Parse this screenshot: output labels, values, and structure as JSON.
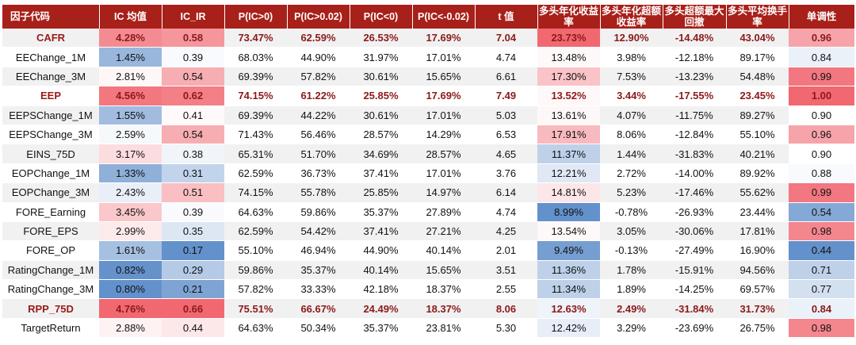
{
  "headers": [
    "因子代码",
    "IC 均值",
    "IC_IR",
    "P(IC>0)",
    "P(IC>0.02)",
    "P(IC<0)",
    "P(IC<-0.02)",
    "t 值",
    "多头年化收益率",
    "多头年化超额收益率",
    "多头超额最大回撤",
    "多头平均换手率",
    "单调性"
  ],
  "colors": {
    "header_bg": "#a8201a",
    "highlight_text": "#8b1a1a",
    "positive_shade": "#f0606a",
    "negative_shade": "#5b8bc8"
  },
  "rows": [
    {
      "name": "CAFR",
      "highlight": true,
      "values": [
        "4.28%",
        "0.58",
        "73.47%",
        "62.59%",
        "26.53%",
        "17.69%",
        "7.04",
        "23.73%",
        "12.90%",
        "-14.48%",
        "43.04%",
        "0.96"
      ]
    },
    {
      "name": "EEChange_1M",
      "highlight": false,
      "values": [
        "1.45%",
        "0.39",
        "68.03%",
        "44.90%",
        "31.97%",
        "17.01%",
        "4.74",
        "13.48%",
        "3.98%",
        "-12.18%",
        "89.17%",
        "0.84"
      ]
    },
    {
      "name": "EEChange_3M",
      "highlight": false,
      "values": [
        "2.81%",
        "0.54",
        "69.39%",
        "57.82%",
        "30.61%",
        "15.65%",
        "6.61",
        "17.30%",
        "7.53%",
        "-13.23%",
        "54.48%",
        "0.99"
      ]
    },
    {
      "name": "EEP",
      "highlight": true,
      "values": [
        "4.56%",
        "0.62",
        "74.15%",
        "61.22%",
        "25.85%",
        "17.69%",
        "7.49",
        "13.52%",
        "3.44%",
        "-17.55%",
        "23.45%",
        "1.00"
      ]
    },
    {
      "name": "EEPSChange_1M",
      "highlight": false,
      "values": [
        "1.55%",
        "0.41",
        "69.39%",
        "44.22%",
        "30.61%",
        "17.01%",
        "5.03",
        "13.61%",
        "4.07%",
        "-11.75%",
        "89.27%",
        "0.90"
      ]
    },
    {
      "name": "EEPSChange_3M",
      "highlight": false,
      "values": [
        "2.59%",
        "0.54",
        "71.43%",
        "56.46%",
        "28.57%",
        "14.29%",
        "6.53",
        "17.91%",
        "8.06%",
        "-12.84%",
        "55.10%",
        "0.96"
      ]
    },
    {
      "name": "EINS_75D",
      "highlight": false,
      "values": [
        "3.17%",
        "0.38",
        "65.31%",
        "51.70%",
        "34.69%",
        "28.57%",
        "4.65",
        "11.37%",
        "1.44%",
        "-31.83%",
        "40.21%",
        "0.90"
      ]
    },
    {
      "name": "EOPChange_1M",
      "highlight": false,
      "values": [
        "1.33%",
        "0.31",
        "62.59%",
        "36.73%",
        "37.41%",
        "17.01%",
        "3.76",
        "12.21%",
        "2.72%",
        "-14.00%",
        "89.92%",
        "0.88"
      ]
    },
    {
      "name": "EOPChange_3M",
      "highlight": false,
      "values": [
        "2.43%",
        "0.51",
        "74.15%",
        "55.78%",
        "25.85%",
        "14.97%",
        "6.14",
        "14.81%",
        "5.23%",
        "-17.46%",
        "55.62%",
        "0.99"
      ]
    },
    {
      "name": "FORE_Earning",
      "highlight": false,
      "values": [
        "3.45%",
        "0.39",
        "64.63%",
        "59.86%",
        "35.37%",
        "27.89%",
        "4.74",
        "8.99%",
        "-0.78%",
        "-26.93%",
        "23.44%",
        "0.54"
      ]
    },
    {
      "name": "FORE_EPS",
      "highlight": false,
      "values": [
        "2.99%",
        "0.35",
        "62.59%",
        "54.42%",
        "37.41%",
        "27.21%",
        "4.25",
        "13.54%",
        "3.05%",
        "-30.06%",
        "17.81%",
        "0.98"
      ]
    },
    {
      "name": "FORE_OP",
      "highlight": false,
      "values": [
        "1.61%",
        "0.17",
        "55.10%",
        "46.94%",
        "44.90%",
        "40.14%",
        "2.01",
        "9.49%",
        "-0.13%",
        "-27.49%",
        "16.90%",
        "0.44"
      ]
    },
    {
      "name": "RatingChange_1M",
      "highlight": false,
      "values": [
        "0.82%",
        "0.29",
        "59.86%",
        "35.37%",
        "40.14%",
        "15.65%",
        "3.51",
        "11.36%",
        "1.78%",
        "-15.91%",
        "94.56%",
        "0.71"
      ]
    },
    {
      "name": "RatingChange_3M",
      "highlight": false,
      "values": [
        "0.80%",
        "0.21",
        "57.82%",
        "33.33%",
        "42.18%",
        "18.37%",
        "2.55",
        "11.34%",
        "1.89%",
        "-14.25%",
        "69.57%",
        "0.77"
      ]
    },
    {
      "name": "RPP_75D",
      "highlight": true,
      "values": [
        "4.76%",
        "0.66",
        "75.51%",
        "66.67%",
        "24.49%",
        "18.37%",
        "8.06",
        "12.63%",
        "2.49%",
        "-31.84%",
        "31.73%",
        "0.84"
      ]
    },
    {
      "name": "TargetReturn",
      "highlight": false,
      "values": [
        "2.88%",
        "0.44",
        "64.63%",
        "50.34%",
        "35.37%",
        "23.81%",
        "5.30",
        "12.42%",
        "3.29%",
        "-23.69%",
        "26.75%",
        "0.98"
      ]
    }
  ]
}
